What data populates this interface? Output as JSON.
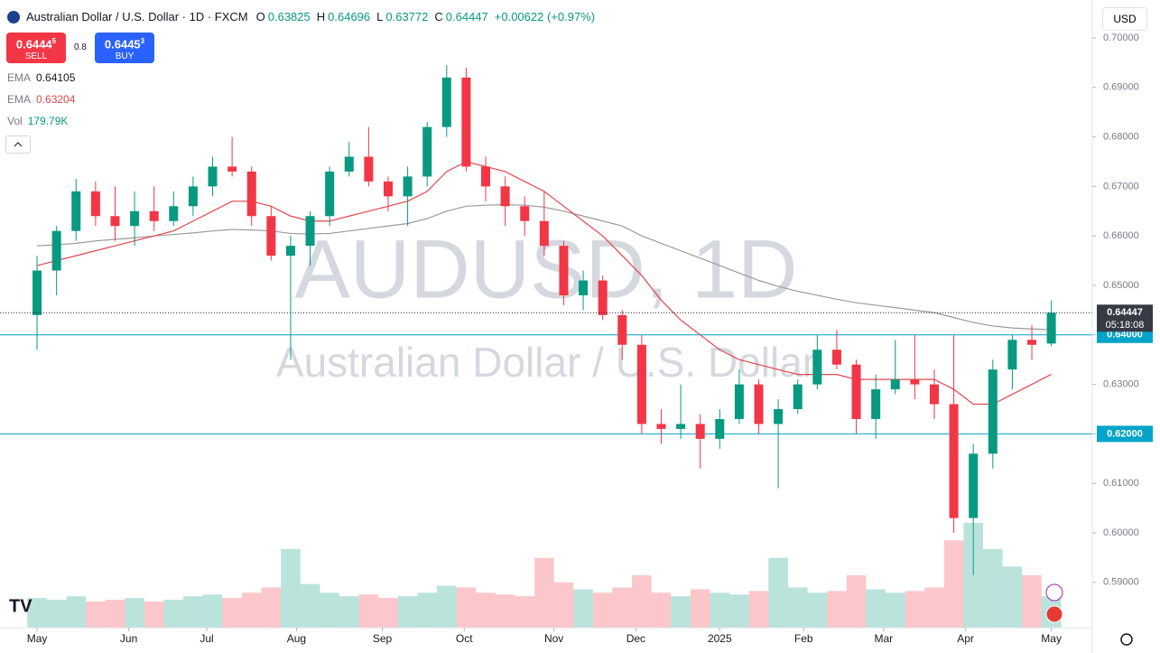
{
  "header": {
    "symbol": "Australian Dollar / U.S. Dollar · 1D · FXCM",
    "o_key": "O",
    "open": "0.63825",
    "h_key": "H",
    "high": "0.64696",
    "l_key": "L",
    "low": "0.63772",
    "c_key": "C",
    "close": "0.64447",
    "change": "+0.00622 (+0.97%)"
  },
  "trade": {
    "sell_price": "0.6444",
    "sell_pip": "5",
    "sell": "SELL",
    "spread": "0.8",
    "buy_price": "0.6445",
    "buy_pip": "3",
    "buy": "BUY"
  },
  "indicators": [
    {
      "name": "EMA",
      "value": "0.64105"
    },
    {
      "name": "EMA",
      "value": "0.63204"
    },
    {
      "name": "Vol",
      "value": "179.79K"
    }
  ],
  "currency": "USD",
  "watermark": {
    "symbol": "AUDUSD, 1D",
    "name": "Australian Dollar / U.S. Dollar"
  },
  "chart_data": {
    "type": "candlestick",
    "x": [
      0,
      1,
      2,
      3,
      4,
      5,
      6,
      7,
      8,
      9,
      10,
      11,
      12,
      13,
      14,
      15,
      16,
      17,
      18,
      19,
      20,
      21,
      22,
      23,
      24,
      25,
      26,
      27,
      28,
      29,
      30,
      31,
      32,
      33,
      34,
      35,
      36,
      37,
      38,
      39,
      40,
      41,
      42,
      43,
      44,
      45,
      46,
      47,
      48,
      49,
      50,
      51,
      52
    ],
    "open": [
      0.644,
      0.653,
      0.661,
      0.669,
      0.664,
      0.662,
      0.665,
      0.663,
      0.666,
      0.67,
      0.674,
      0.673,
      0.664,
      0.656,
      0.658,
      0.664,
      0.673,
      0.676,
      0.671,
      0.668,
      0.672,
      0.682,
      0.692,
      0.674,
      0.67,
      0.666,
      0.663,
      0.658,
      0.648,
      0.651,
      0.644,
      0.638,
      0.622,
      0.621,
      0.622,
      0.619,
      0.623,
      0.63,
      0.622,
      0.625,
      0.63,
      0.637,
      0.634,
      0.623,
      0.629,
      0.631,
      0.63,
      0.626,
      0.603,
      0.616,
      0.633,
      0.639,
      0.63825
    ],
    "high": [
      0.656,
      0.662,
      0.6715,
      0.671,
      0.67,
      0.669,
      0.67,
      0.669,
      0.672,
      0.676,
      0.68,
      0.674,
      0.666,
      0.66,
      0.665,
      0.674,
      0.679,
      0.682,
      0.672,
      0.674,
      0.683,
      0.6945,
      0.694,
      0.676,
      0.672,
      0.668,
      0.669,
      0.659,
      0.653,
      0.652,
      0.645,
      0.64,
      0.625,
      0.63,
      0.624,
      0.625,
      0.633,
      0.631,
      0.627,
      0.631,
      0.64,
      0.641,
      0.635,
      0.632,
      0.639,
      0.64,
      0.633,
      0.64,
      0.618,
      0.635,
      0.64,
      0.642,
      0.64696
    ],
    "low": [
      0.637,
      0.648,
      0.659,
      0.662,
      0.659,
      0.658,
      0.661,
      0.662,
      0.664,
      0.668,
      0.672,
      0.662,
      0.655,
      0.635,
      0.654,
      0.662,
      0.672,
      0.67,
      0.665,
      0.662,
      0.67,
      0.68,
      0.673,
      0.667,
      0.662,
      0.66,
      0.656,
      0.646,
      0.645,
      0.643,
      0.635,
      0.62,
      0.618,
      0.619,
      0.613,
      0.617,
      0.622,
      0.62,
      0.609,
      0.624,
      0.629,
      0.633,
      0.62,
      0.619,
      0.628,
      0.627,
      0.623,
      0.6,
      0.5915,
      0.613,
      0.629,
      0.635,
      0.63772
    ],
    "close": [
      0.653,
      0.661,
      0.669,
      0.664,
      0.662,
      0.665,
      0.663,
      0.666,
      0.67,
      0.674,
      0.673,
      0.664,
      0.656,
      0.658,
      0.664,
      0.673,
      0.676,
      0.671,
      0.668,
      0.672,
      0.682,
      0.692,
      0.674,
      0.67,
      0.666,
      0.663,
      0.658,
      0.648,
      0.651,
      0.644,
      0.638,
      0.622,
      0.621,
      0.622,
      0.619,
      0.623,
      0.63,
      0.622,
      0.625,
      0.63,
      0.637,
      0.634,
      0.623,
      0.629,
      0.631,
      0.63,
      0.626,
      0.603,
      0.616,
      0.633,
      0.639,
      0.638,
      0.64447
    ],
    "volume": [
      170,
      160,
      180,
      150,
      160,
      170,
      150,
      160,
      180,
      190,
      170,
      200,
      230,
      450,
      250,
      200,
      180,
      190,
      170,
      180,
      200,
      240,
      230,
      200,
      190,
      180,
      400,
      260,
      220,
      200,
      230,
      300,
      200,
      180,
      220,
      200,
      190,
      210,
      400,
      230,
      200,
      210,
      300,
      220,
      200,
      210,
      230,
      500,
      600,
      450,
      350,
      300,
      179.79
    ],
    "up_color": "#089981",
    "down_color": "#f23645",
    "series": [
      {
        "name": "EMA",
        "color": "#9b9b9b",
        "values": [
          0.658,
          0.6582,
          0.6585,
          0.659,
          0.6593,
          0.6596,
          0.66,
          0.6603,
          0.6606,
          0.661,
          0.6613,
          0.6612,
          0.661,
          0.6605,
          0.6604,
          0.6605,
          0.661,
          0.6615,
          0.662,
          0.6625,
          0.6635,
          0.665,
          0.666,
          0.6662,
          0.6663,
          0.6662,
          0.6658,
          0.665,
          0.664,
          0.663,
          0.662,
          0.66,
          0.6585,
          0.657,
          0.6555,
          0.654,
          0.6525,
          0.651,
          0.6498,
          0.6488,
          0.648,
          0.6472,
          0.6465,
          0.646,
          0.6455,
          0.645,
          0.6445,
          0.6435,
          0.6425,
          0.6418,
          0.6414,
          0.6412,
          0.64105
        ]
      },
      {
        "name": "EMA",
        "color": "#e0484d",
        "values": [
          0.654,
          0.655,
          0.656,
          0.657,
          0.658,
          0.659,
          0.66,
          0.661,
          0.663,
          0.665,
          0.667,
          0.667,
          0.666,
          0.664,
          0.663,
          0.663,
          0.664,
          0.665,
          0.666,
          0.667,
          0.669,
          0.673,
          0.675,
          0.674,
          0.673,
          0.671,
          0.669,
          0.666,
          0.663,
          0.66,
          0.656,
          0.652,
          0.647,
          0.643,
          0.64,
          0.637,
          0.635,
          0.634,
          0.633,
          0.632,
          0.632,
          0.632,
          0.631,
          0.631,
          0.631,
          0.631,
          0.631,
          0.629,
          0.626,
          0.626,
          0.628,
          0.63,
          0.63204
        ]
      }
    ],
    "levels": [
      {
        "value": 0.64,
        "label": "0.64000"
      },
      {
        "value": 0.62,
        "label": "0.62000"
      }
    ],
    "level_color": "#00a4c8",
    "last": {
      "value": 0.64447,
      "label": "0.64447",
      "countdown": "05:18:08"
    },
    "ylim": [
      0.58084,
      0.7062
    ],
    "yticks": [
      {
        "value": 0.59,
        "label": "0.59000"
      },
      {
        "value": 0.6,
        "label": "0.60000"
      },
      {
        "value": 0.61,
        "label": "0.61000"
      },
      {
        "value": 0.62,
        "label": "0.62000"
      },
      {
        "value": 0.63,
        "label": "0.63000"
      },
      {
        "value": 0.64,
        "label": "0.64000"
      },
      {
        "value": 0.65,
        "label": "0.65000"
      },
      {
        "value": 0.66,
        "label": "0.66000"
      },
      {
        "value": 0.67,
        "label": "0.67000"
      },
      {
        "value": 0.68,
        "label": "0.68000"
      },
      {
        "value": 0.69,
        "label": "0.69000"
      },
      {
        "value": 0.7,
        "label": "0.70000"
      }
    ],
    "xlim": [
      -1.9,
      54.1
    ],
    "xticks": [
      {
        "value": 0,
        "label": "May"
      },
      {
        "value": 4.7,
        "label": "Jun"
      },
      {
        "value": 8.7,
        "label": "Jul"
      },
      {
        "value": 13.3,
        "label": "Aug"
      },
      {
        "value": 17.7,
        "label": "Sep"
      },
      {
        "value": 21.9,
        "label": "Oct"
      },
      {
        "value": 26.5,
        "label": "Nov"
      },
      {
        "value": 30.7,
        "label": "Dec"
      },
      {
        "value": 35,
        "label": "2025"
      },
      {
        "value": 39.3,
        "label": "Feb"
      },
      {
        "value": 43.4,
        "label": "Mar"
      },
      {
        "value": 47.6,
        "label": "Apr"
      },
      {
        "value": 52.0,
        "label": "May"
      }
    ],
    "vol_lim": [
      0,
      620
    ]
  }
}
